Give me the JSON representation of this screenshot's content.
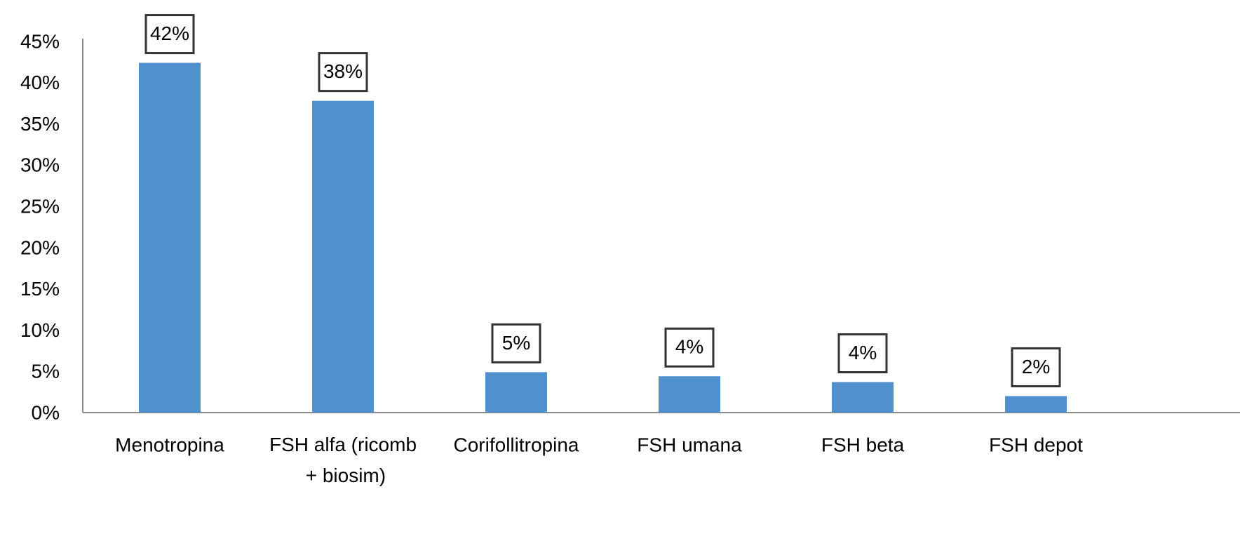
{
  "chart_data": {
    "type": "bar",
    "categories": [
      "Menotropina",
      "FSH alfa (ricomb + biosim)",
      "Corifollitropina",
      "FSH umana",
      "FSH beta",
      "FSH depot"
    ],
    "values": [
      42.4,
      37.8,
      4.9,
      4.4,
      3.7,
      2.0
    ],
    "value_labels": [
      "42%",
      "38%",
      "5%",
      "4%",
      "4%",
      "2%"
    ],
    "color": "#4f90cd",
    "ylim": [
      0,
      45
    ],
    "yticks": [
      {
        "value": 0,
        "label": "0%"
      },
      {
        "value": 5,
        "label": "5%"
      },
      {
        "value": 10,
        "label": "10%"
      },
      {
        "value": 15,
        "label": "15%"
      },
      {
        "value": 20,
        "label": "20%"
      },
      {
        "value": 25,
        "label": "25%"
      },
      {
        "value": 30,
        "label": "30%"
      },
      {
        "value": 35,
        "label": "35%"
      },
      {
        "value": 40,
        "label": "40%"
      },
      {
        "value": 45,
        "label": "45%"
      }
    ],
    "grid": false
  }
}
